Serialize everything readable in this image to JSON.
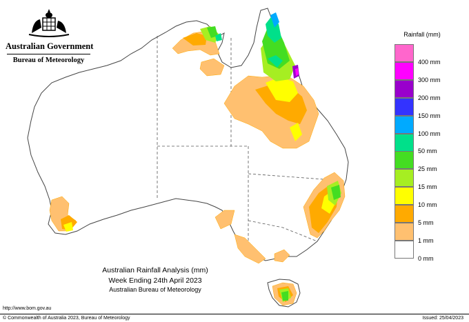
{
  "brand": {
    "government": "Australian Government",
    "bureau": "Bureau of Meteorology"
  },
  "legend": {
    "title": "Rainfall (mm)",
    "items": [
      {
        "label": "",
        "color": "#ff66cc"
      },
      {
        "label": "400 mm",
        "color": "#ff00ff"
      },
      {
        "label": "300 mm",
        "color": "#9900cc"
      },
      {
        "label": "200 mm",
        "color": "#3333ff"
      },
      {
        "label": "150 mm",
        "color": "#00aaff"
      },
      {
        "label": "100 mm",
        "color": "#00e08a"
      },
      {
        "label": "50 mm",
        "color": "#44dd22"
      },
      {
        "label": "25 mm",
        "color": "#a6ee22"
      },
      {
        "label": "15 mm",
        "color": "#ffff00"
      },
      {
        "label": "10 mm",
        "color": "#ffaa00"
      },
      {
        "label": "5 mm",
        "color": "#ffc070"
      },
      {
        "label": "1 mm",
        "color": "#ffffff"
      },
      {
        "label": "0 mm",
        "color": ""
      }
    ]
  },
  "caption": {
    "line1": "Australian Rainfall Analysis (mm)",
    "line2": "Week Ending 24th April 2023",
    "line3": "Australian Bureau of Meteorology"
  },
  "footer": {
    "url": "http://www.bom.gov.au",
    "copyright": "© Commonwealth of Australia 2023, Bureau of Meteorology",
    "issued": "Issued: 25/04/2023"
  },
  "map": {
    "colors": {
      "outline": "#444444",
      "land": "#ffffff",
      "light": "#ffc070",
      "mid": "#ffaa00",
      "yellow": "#ffff00",
      "lime": "#a6ee22",
      "green": "#44dd22",
      "teal": "#00e08a",
      "blue": "#00aaff",
      "purple": "#9900cc",
      "magenta": "#ff00ff"
    },
    "layers": [
      "land",
      "state-borders",
      "rain-1mm",
      "rain-5mm",
      "rain-10mm",
      "rain-15mm",
      "rain-25mm",
      "rain-50mm",
      "rain-100mm",
      "rain-150mm",
      "rain-200mm"
    ]
  }
}
